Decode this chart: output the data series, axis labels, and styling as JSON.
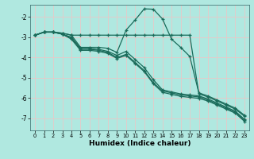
{
  "title": "",
  "xlabel": "Humidex (Indice chaleur)",
  "ylabel": "",
  "background_color": "#b0e8e0",
  "grid_color": "#e8c8c8",
  "line_color": "#1a6b5a",
  "xlim": [
    -0.5,
    23.5
  ],
  "ylim": [
    -7.6,
    -1.4
  ],
  "yticks": [
    -7,
    -6,
    -5,
    -4,
    -3,
    -2
  ],
  "xticks": [
    0,
    1,
    2,
    3,
    4,
    5,
    6,
    7,
    8,
    9,
    10,
    11,
    12,
    13,
    14,
    15,
    16,
    17,
    18,
    19,
    20,
    21,
    22,
    23
  ],
  "lines": [
    {
      "x": [
        0,
        1,
        2,
        3,
        4,
        5,
        6,
        7,
        8,
        9,
        10,
        11,
        12,
        13,
        14,
        15,
        16,
        17,
        18,
        19,
        20,
        21,
        22,
        23
      ],
      "y": [
        -2.9,
        -2.75,
        -2.75,
        -2.8,
        -2.9,
        -3.5,
        -3.5,
        -3.5,
        -3.55,
        -3.75,
        -2.65,
        -2.15,
        -1.6,
        -1.62,
        -2.1,
        -3.1,
        -3.5,
        -3.95,
        -5.75,
        -5.9,
        -6.1,
        -6.3,
        -6.5,
        -6.85
      ]
    },
    {
      "x": [
        0,
        1,
        2,
        3,
        4,
        5,
        6,
        7,
        8,
        9,
        10,
        11,
        12,
        13,
        14,
        15,
        16,
        17,
        18,
        19,
        20,
        21,
        22,
        23
      ],
      "y": [
        -2.9,
        -2.75,
        -2.75,
        -2.8,
        -2.9,
        -2.9,
        -2.9,
        -2.9,
        -2.9,
        -2.9,
        -2.9,
        -2.9,
        -2.9,
        -2.9,
        -2.9,
        -2.9,
        -2.9,
        -2.9,
        -5.8,
        -5.95,
        -6.15,
        -6.35,
        -6.55,
        -6.9
      ]
    },
    {
      "x": [
        0,
        1,
        2,
        3,
        4,
        5,
        6,
        7,
        8,
        9,
        10,
        11,
        12,
        13,
        14,
        15,
        16,
        17,
        18,
        19,
        20,
        21,
        22,
        23
      ],
      "y": [
        -2.9,
        -2.75,
        -2.75,
        -2.85,
        -3.0,
        -3.55,
        -3.55,
        -3.6,
        -3.7,
        -3.9,
        -3.7,
        -4.1,
        -4.5,
        -5.1,
        -5.6,
        -5.7,
        -5.8,
        -5.85,
        -5.9,
        -6.05,
        -6.25,
        -6.45,
        -6.65,
        -7.05
      ]
    },
    {
      "x": [
        0,
        1,
        2,
        3,
        4,
        5,
        6,
        7,
        8,
        9,
        10,
        11,
        12,
        13,
        14,
        15,
        16,
        17,
        18,
        19,
        20,
        21,
        22,
        23
      ],
      "y": [
        -2.9,
        -2.75,
        -2.75,
        -2.85,
        -3.05,
        -3.6,
        -3.6,
        -3.65,
        -3.75,
        -4.0,
        -3.85,
        -4.25,
        -4.65,
        -5.25,
        -5.65,
        -5.75,
        -5.85,
        -5.9,
        -5.95,
        -6.1,
        -6.3,
        -6.5,
        -6.7,
        -7.1
      ]
    },
    {
      "x": [
        0,
        1,
        2,
        3,
        4,
        5,
        6,
        7,
        8,
        9,
        10,
        11,
        12,
        13,
        14,
        15,
        16,
        17,
        18,
        19,
        20,
        21,
        22,
        23
      ],
      "y": [
        -2.9,
        -2.75,
        -2.75,
        -2.85,
        -3.1,
        -3.65,
        -3.65,
        -3.7,
        -3.8,
        -4.05,
        -3.9,
        -4.3,
        -4.7,
        -5.3,
        -5.72,
        -5.82,
        -5.92,
        -5.97,
        -6.02,
        -6.15,
        -6.35,
        -6.55,
        -6.75,
        -7.15
      ]
    }
  ]
}
